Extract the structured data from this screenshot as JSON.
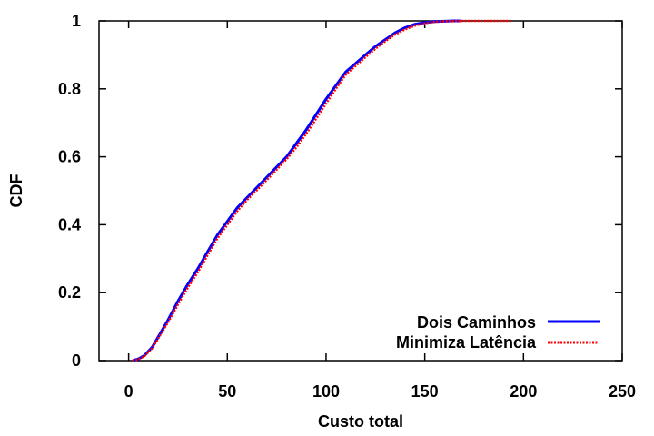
{
  "chart_data": {
    "type": "line",
    "title": "",
    "xlabel": "Custo total",
    "ylabel": "CDF",
    "xlim": [
      -15,
      250
    ],
    "ylim": [
      0,
      1
    ],
    "xticks": [
      0,
      50,
      100,
      150,
      200,
      250
    ],
    "yticks": [
      0,
      0.2,
      0.4,
      0.6,
      0.8,
      1
    ],
    "xtick_labels": [
      "0",
      "50",
      "100",
      "150",
      "200",
      "250"
    ],
    "ytick_labels": [
      "0",
      "0.2",
      "0.4",
      "0.6",
      "0.8",
      "1"
    ],
    "grid": false,
    "legend_position": "bottom-right",
    "series": [
      {
        "name": "Dois Caminhos",
        "color": "#0000ff",
        "style": "solid",
        "x": [
          2,
          5,
          8,
          12,
          16,
          20,
          25,
          30,
          35,
          40,
          45,
          50,
          55,
          60,
          65,
          70,
          75,
          80,
          85,
          90,
          95,
          100,
          105,
          110,
          115,
          120,
          125,
          130,
          135,
          140,
          145,
          150,
          155,
          160,
          165,
          168
        ],
        "y": [
          0,
          0.005,
          0.015,
          0.04,
          0.08,
          0.12,
          0.175,
          0.225,
          0.27,
          0.32,
          0.37,
          0.41,
          0.45,
          0.48,
          0.51,
          0.54,
          0.57,
          0.6,
          0.64,
          0.68,
          0.725,
          0.77,
          0.81,
          0.85,
          0.875,
          0.9,
          0.925,
          0.945,
          0.965,
          0.98,
          0.99,
          0.995,
          0.998,
          0.999,
          1.0,
          1.0
        ]
      },
      {
        "name": "Minimiza Latência",
        "color": "#ff0000",
        "style": "dotted",
        "x": [
          2,
          5,
          8,
          12,
          16,
          20,
          25,
          30,
          35,
          40,
          45,
          50,
          55,
          60,
          65,
          70,
          75,
          80,
          85,
          90,
          95,
          100,
          105,
          110,
          115,
          120,
          125,
          130,
          135,
          140,
          145,
          150,
          155,
          160,
          170,
          180,
          194
        ],
        "y": [
          0,
          0.004,
          0.013,
          0.037,
          0.075,
          0.113,
          0.165,
          0.215,
          0.26,
          0.31,
          0.36,
          0.4,
          0.44,
          0.473,
          0.502,
          0.532,
          0.562,
          0.593,
          0.628,
          0.668,
          0.712,
          0.757,
          0.8,
          0.842,
          0.868,
          0.893,
          0.918,
          0.94,
          0.96,
          0.975,
          0.986,
          0.993,
          0.997,
          0.999,
          1.0,
          1.0,
          1.0
        ]
      }
    ]
  }
}
